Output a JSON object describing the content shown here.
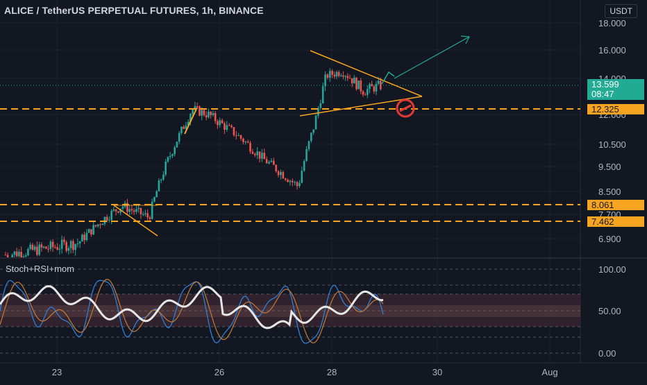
{
  "header": {
    "title": "ALICE / TetherUS PERPETUAL FUTURES, 1h, BINANCE",
    "currency_button": "USDT"
  },
  "price_axis": {
    "labels": [
      "18.000",
      "16.000",
      "14.000",
      "12.000",
      "10.500",
      "9.500",
      "8.500",
      "7.700",
      "6.900"
    ]
  },
  "badges": {
    "current_price": "13.599",
    "countdown": "08:47",
    "level_1": "12.325",
    "level_2": "8.061",
    "level_3": "7.462"
  },
  "indicator": {
    "name": "Stoch+RSI+mom",
    "axis_labels": [
      "100.00",
      "50.00",
      "0.00"
    ]
  },
  "time_axis": {
    "labels": [
      "23",
      "26",
      "28",
      "30",
      "Aug"
    ]
  },
  "colors": {
    "background": "#131722",
    "bull": "#26a69a",
    "bear": "#ef5350",
    "orange": "#f7a521",
    "current_price": "#22ab94",
    "level_line": "#f7a521",
    "grid": "#1e222d",
    "stoch_blue": "#2f7fd6",
    "stoch_orange": "#b9763a",
    "rsi_white": "#e6e6e6"
  },
  "chart_data": {
    "type": "candlestick",
    "symbol": "ALICE / TetherUS PERPETUAL FUTURES",
    "interval": "1h",
    "exchange": "BINANCE",
    "current_price": 13.599,
    "horizontal_levels": [
      12.325,
      8.061,
      7.462
    ],
    "y_ticks": [
      18.0,
      16.0,
      14.0,
      12.0,
      10.5,
      9.5,
      8.5,
      7.7,
      6.9
    ],
    "x_ticks": [
      "23",
      "26",
      "28",
      "30",
      "Aug"
    ],
    "price_path_approx": [
      {
        "x": "22",
        "y": 6.5
      },
      {
        "x": "23.4",
        "y": 6.8
      },
      {
        "x": "23.9",
        "y": 7.6
      },
      {
        "x": "24.2",
        "y": 8.0
      },
      {
        "x": "24.7",
        "y": 7.6
      },
      {
        "x": "25.0",
        "y": 9.5
      },
      {
        "x": "25.5",
        "y": 12.3
      },
      {
        "x": "25.8",
        "y": 12.0
      },
      {
        "x": "26.3",
        "y": 11.0
      },
      {
        "x": "26.8",
        "y": 9.8
      },
      {
        "x": "27.4",
        "y": 8.7
      },
      {
        "x": "27.7",
        "y": 11.6
      },
      {
        "x": "27.9",
        "y": 14.2
      },
      {
        "x": "28.2",
        "y": 14.5
      },
      {
        "x": "28.6",
        "y": 13.3
      },
      {
        "x": "28.9",
        "y": 13.6
      }
    ],
    "indicator": {
      "name": "Stoch+RSI+mom",
      "ylim": [
        0,
        100
      ],
      "y_ticks": [
        100,
        50,
        0
      ]
    }
  }
}
